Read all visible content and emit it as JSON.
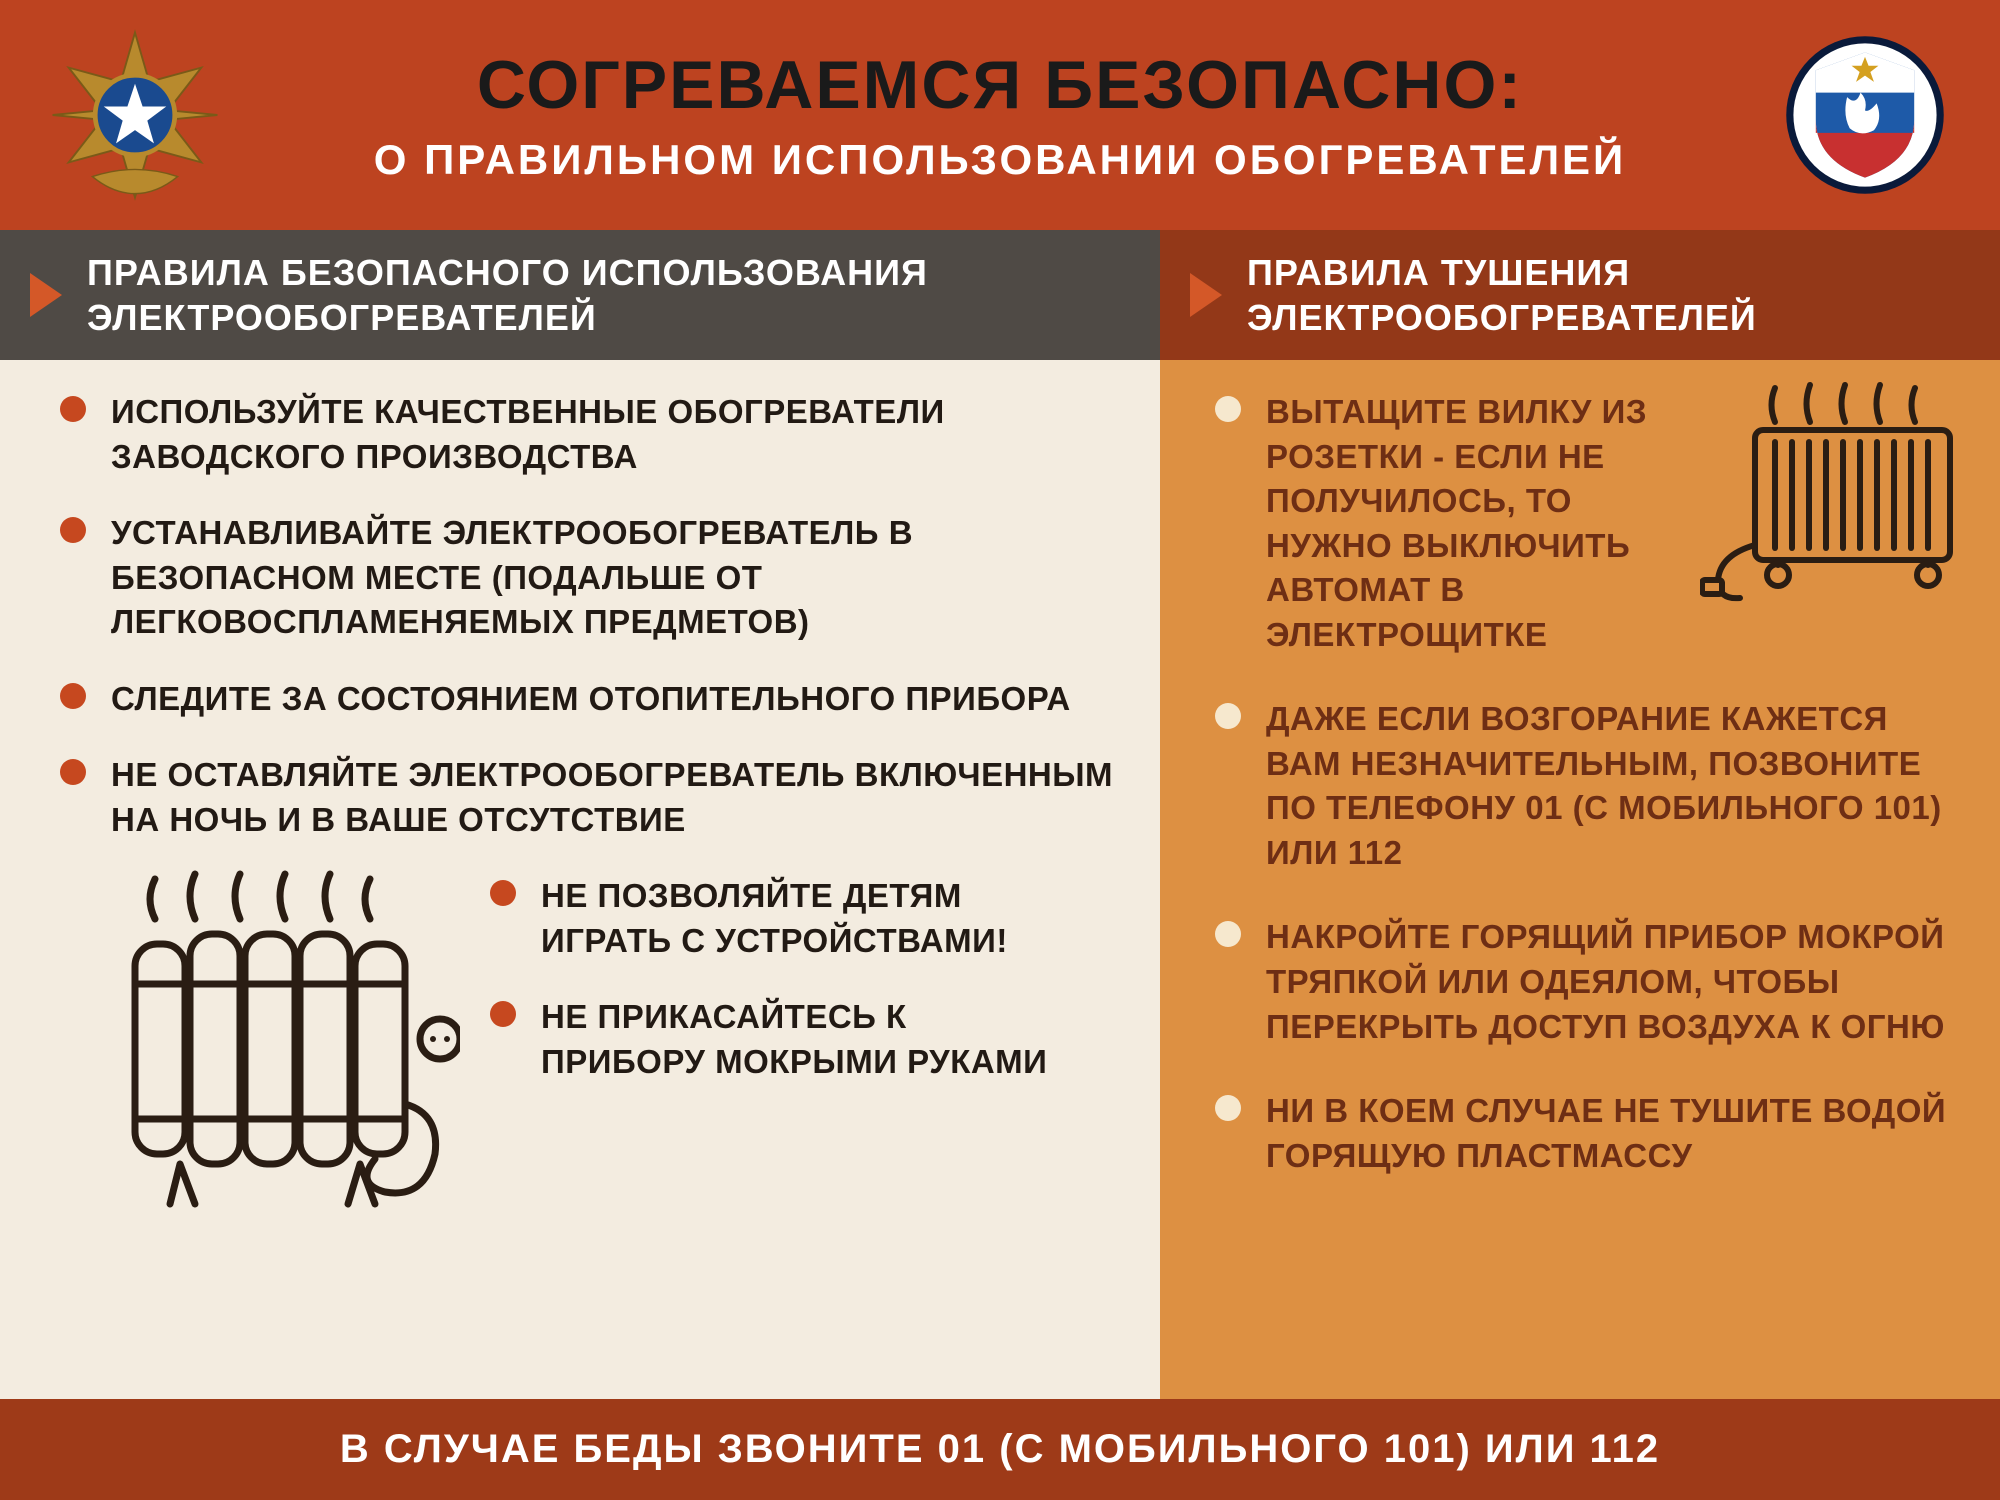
{
  "colors": {
    "header_bg": "#bd4320",
    "header_title": "#1a1a1a",
    "header_subtitle": "#ffffff",
    "left_head_bg": "#4f4a45",
    "left_body_bg": "#f3ece0",
    "left_text": "#221a14",
    "left_bullet": "#c6481f",
    "left_arrow": "#d45828",
    "right_head_bg": "#933818",
    "right_body_bg": "#dd9042",
    "right_text": "#6e2e14",
    "right_bullet": "#f6e8ce",
    "right_arrow": "#d45828",
    "footer_bg": "#9e3a18",
    "footer_text": "#ffffff",
    "illus_stroke": "#2a1d13",
    "emblem_gold": "#b88a2d",
    "emblem_blue": "#1a4a8f",
    "shield_outer": "#0a1a3a",
    "shield_white": "#ffffff",
    "shield_blue": "#1e5aa8",
    "shield_red": "#c83030"
  },
  "header": {
    "title": "СОГРЕВАЕМСЯ БЕЗОПАСНО:",
    "subtitle": "О ПРАВИЛЬНОМ ИСПОЛЬЗОВАНИИ ОБОГРЕВАТЕЛЕЙ",
    "title_fontsize": 68,
    "subtitle_fontsize": 42
  },
  "left": {
    "heading": "ПРАВИЛА БЕЗОПАСНОГО ИСПОЛЬЗОВАНИЯ ЭЛЕКТРООБОГРЕВАТЕЛЕЙ",
    "items": [
      "ИСПОЛЬЗУЙТЕ КАЧЕСТВЕННЫЕ ОБОГРЕВАТЕЛИ ЗАВОДСКОГО ПРОИЗВОДСТВА",
      "УСТАНАВЛИВАЙТЕ ЭЛЕКТРООБОГРЕВАТЕЛЬ В БЕЗОПАСНОМ МЕСТЕ (ПОДАЛЬШЕ ОТ ЛЕГКОВОСПЛАМЕНЯЕМЫХ ПРЕДМЕТОВ)",
      "СЛЕДИТЕ ЗА СОСТОЯНИЕМ ОТОПИТЕЛЬНОГО ПРИБОРА",
      "НЕ ОСТАВЛЯЙТЕ ЭЛЕКТРООБОГРЕВАТЕЛЬ ВКЛЮЧЕННЫМ НА НОЧЬ И В ВАШЕ ОТСУТСТВИЕ"
    ],
    "items_bottom": [
      "НЕ ПОЗВОЛЯЙТЕ ДЕТЯМ ИГРАТЬ С УСТРОЙСТВАМИ!",
      "НЕ ПРИКАСАЙТЕСЬ К ПРИБОРУ МОКРЫМИ РУКАМИ"
    ]
  },
  "right": {
    "heading": "ПРАВИЛА ТУШЕНИЯ ЭЛЕКТРООБОГРЕВАТЕЛЕЙ",
    "items": [
      "ВЫТАЩИТЕ ВИЛКУ ИЗ РОЗЕТКИ - ЕСЛИ НЕ ПОЛУЧИЛОСЬ, ТО НУЖНО ВЫКЛЮЧИТЬ АВТОМАТ В ЭЛЕКТРОЩИТКЕ",
      "ДАЖЕ ЕСЛИ ВОЗГОРАНИЕ КАЖЕТСЯ ВАМ НЕЗНАЧИТЕЛЬНЫМ, ПОЗВОНИТЕ ПО ТЕЛЕФОНУ 01 (С МОБИЛЬНОГО 101) ИЛИ 112",
      "НАКРОЙТЕ ГОРЯЩИЙ ПРИБОР МОКРОЙ ТРЯПКОЙ ИЛИ ОДЕЯЛОМ, ЧТОБЫ ПЕРЕКРЫТЬ ДОСТУП ВОЗДУХА К ОГНЮ",
      "НИ В КОЕМ СЛУЧАЕ НЕ ТУШИТЕ ВОДОЙ ГОРЯЩУЮ ПЛАСТМАССУ"
    ]
  },
  "footer": {
    "text": "В СЛУЧАЕ БЕДЫ ЗВОНИТЕ 01 (С МОБИЛЬНОГО 101) ИЛИ 112",
    "fontsize": 40
  },
  "typography": {
    "bullet_fontsize": 33,
    "heading_fontsize": 36
  }
}
